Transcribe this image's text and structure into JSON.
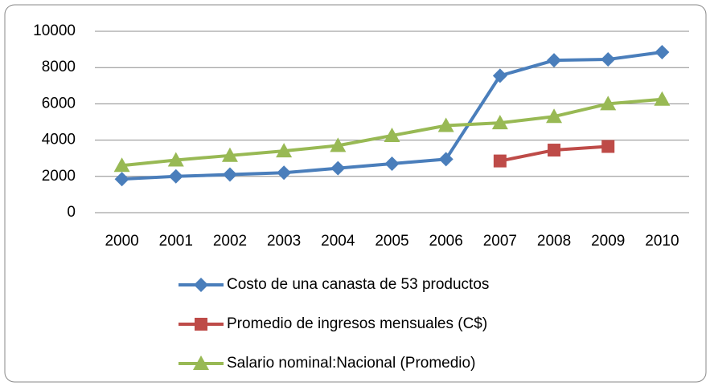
{
  "chart_data": {
    "type": "line",
    "categories": [
      "2000",
      "2001",
      "2002",
      "2003",
      "2004",
      "2005",
      "2006",
      "2007",
      "2008",
      "2009",
      "2010"
    ],
    "series": [
      {
        "name": "Costo de una canasta de 53 productos",
        "color": "#4a7ebb",
        "marker": "diamond",
        "values": [
          1850,
          2000,
          2100,
          2200,
          2450,
          2700,
          2950,
          7550,
          8400,
          8450,
          8850
        ]
      },
      {
        "name": "Promedio de ingresos mensuales (C$)",
        "color": "#be4b48",
        "marker": "square",
        "values": [
          null,
          null,
          null,
          null,
          null,
          null,
          null,
          2850,
          3450,
          3650,
          null
        ]
      },
      {
        "name": "Salario nominal:Nacional (Promedio)",
        "color": "#98b954",
        "marker": "triangle",
        "values": [
          2600,
          2900,
          3150,
          3400,
          3700,
          4250,
          4800,
          4950,
          5300,
          6000,
          6250
        ]
      }
    ],
    "ylim": [
      0,
      10000
    ],
    "yticks": [
      0,
      2000,
      4000,
      6000,
      8000,
      10000
    ],
    "grid": true,
    "legend": "bottom"
  }
}
